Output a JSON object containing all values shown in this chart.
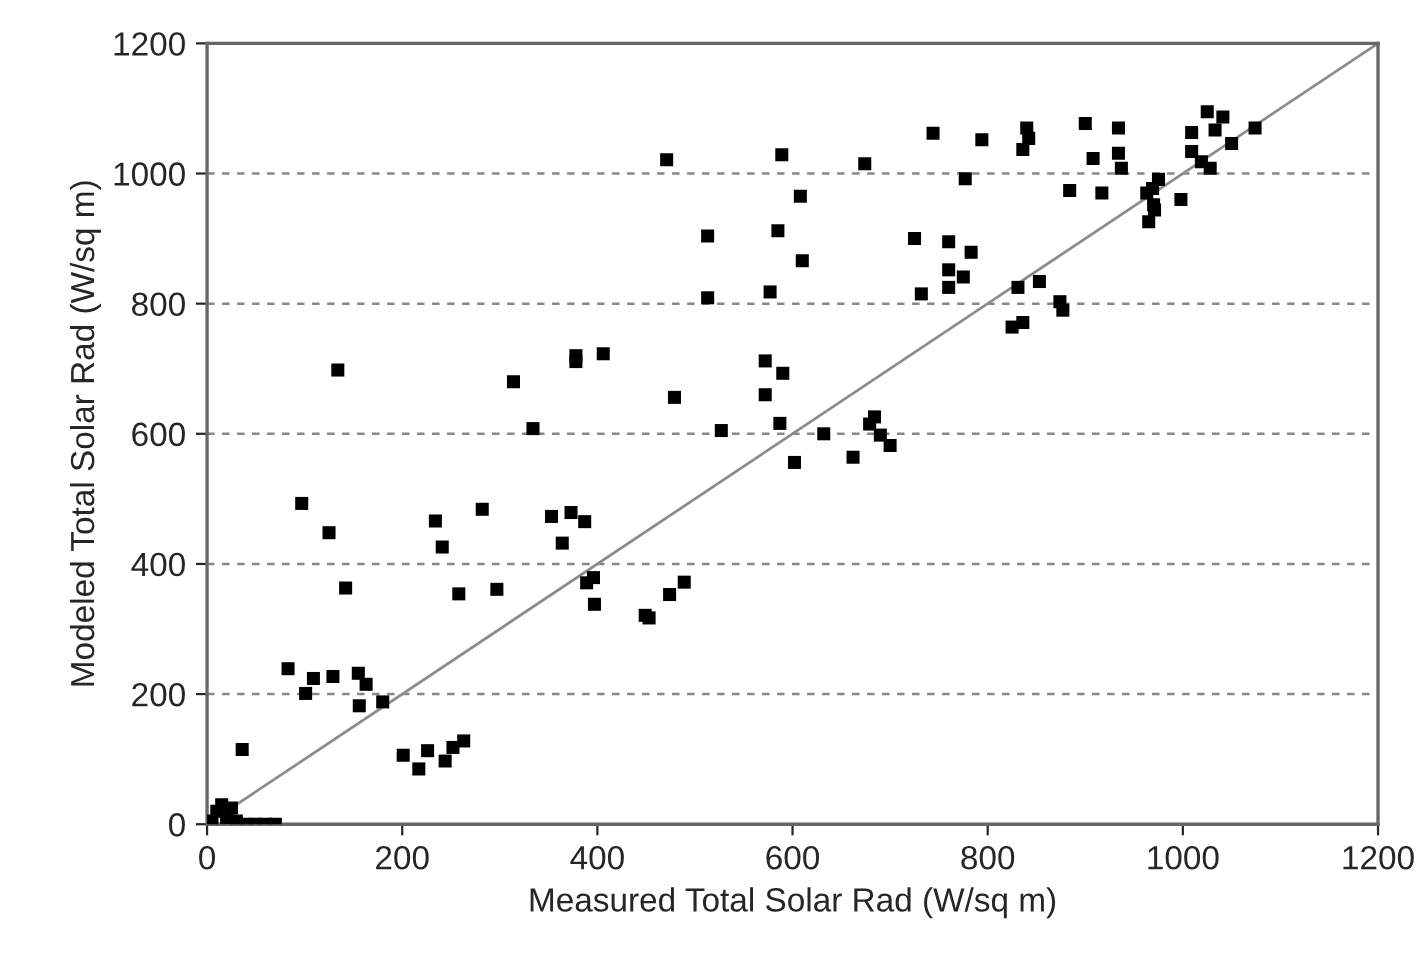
{
  "chart_data": {
    "type": "scatter",
    "xlabel": "Measured Total Solar Rad (W/sq m)",
    "ylabel": "Modeled Total Solar Rad (W/sq m)",
    "xlim": [
      0,
      1200
    ],
    "ylim": [
      0,
      1200
    ],
    "xticks": [
      0,
      200,
      400,
      600,
      800,
      1000,
      1200
    ],
    "yticks": [
      0,
      200,
      400,
      600,
      800,
      1000,
      1200
    ],
    "grid": "y",
    "legend": false,
    "series": [
      {
        "marker": "square",
        "color": "#000000",
        "x": [
          134,
          314,
          334,
          378,
          378,
          406,
          479,
          97,
          125,
          142,
          234,
          241,
          282,
          258,
          297,
          353,
          373,
          387,
          364,
          396,
          389,
          397,
          449,
          453,
          474,
          489,
          83,
          101,
          109,
          129,
          155,
          163,
          156,
          180,
          36,
          201,
          217,
          226,
          244,
          252,
          263,
          10,
          15,
          20,
          25,
          30,
          40,
          50,
          60,
          70,
          5,
          471,
          589,
          674,
          744,
          794,
          840,
          842,
          836,
          900,
          934,
          908,
          934,
          937,
          777,
          608,
          884,
          917,
          513,
          585,
          610,
          725,
          760,
          783,
          760,
          775,
          760,
          732,
          513,
          577,
          831,
          853,
          874,
          877,
          825,
          836,
          572,
          590,
          572,
          527,
          587,
          602,
          632,
          662,
          684,
          679,
          690,
          700,
          1025,
          1041,
          1033,
          1009,
          1074,
          1050,
          1009,
          1019,
          1028,
          975,
          969,
          963,
          998,
          971,
          965,
          970
        ],
        "values": [
          698,
          680,
          608,
          711,
          720,
          723,
          656,
          493,
          448,
          363,
          466,
          426,
          484,
          354,
          361,
          473,
          479,
          465,
          432,
          379,
          371,
          338,
          321,
          317,
          353,
          372,
          239,
          201,
          224,
          227,
          232,
          215,
          182,
          188,
          115,
          106,
          85,
          113,
          97,
          118,
          128,
          20,
          30,
          10,
          25,
          5,
          0,
          0,
          0,
          0,
          5,
          1021,
          1029,
          1015,
          1062,
          1052,
          1070,
          1054,
          1037,
          1077,
          1070,
          1023,
          1031,
          1008,
          992,
          965,
          974,
          970,
          904,
          912,
          866,
          900,
          895,
          879,
          852,
          841,
          825,
          815,
          809,
          818,
          825,
          834,
          803,
          790,
          764,
          771,
          712,
          693,
          660,
          605,
          616,
          556,
          600,
          564,
          626,
          615,
          598,
          582,
          1095,
          1087,
          1067,
          1063,
          1070,
          1046,
          1034,
          1018,
          1008,
          991,
          977,
          970,
          960,
          944,
          926,
          952
        ]
      },
      {
        "type": "line",
        "marker": "none",
        "color": "#8c8c8c",
        "x": [
          0,
          1200
        ],
        "values": [
          0,
          1200
        ]
      }
    ]
  }
}
